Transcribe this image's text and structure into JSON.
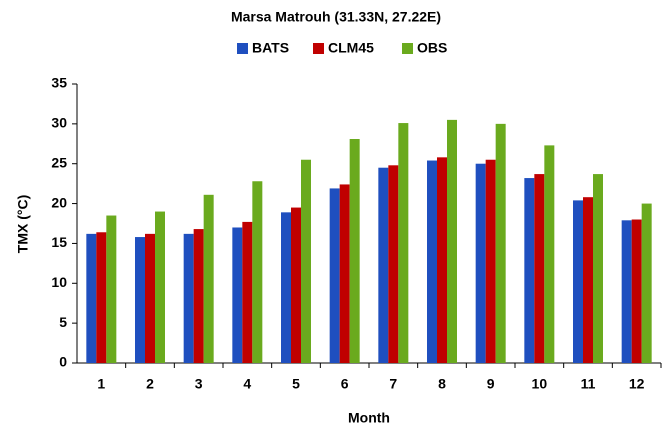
{
  "chart_data": {
    "type": "bar",
    "title": "Marsa Matrouh (31.33N, 27.22E)",
    "x_label": "Month",
    "y_label": "TMX (°C)",
    "categories": [
      "1",
      "2",
      "3",
      "4",
      "5",
      "6",
      "7",
      "8",
      "9",
      "10",
      "11",
      "12"
    ],
    "series": [
      {
        "name": "BATS",
        "color": "#1f4fbf",
        "values": [
          16.2,
          15.8,
          16.2,
          17.0,
          18.9,
          21.9,
          24.5,
          25.4,
          25.0,
          23.2,
          20.4,
          17.9
        ]
      },
      {
        "name": "CLM45",
        "color": "#c00000",
        "values": [
          16.4,
          16.2,
          16.8,
          17.7,
          19.5,
          22.4,
          24.8,
          25.8,
          25.5,
          23.7,
          20.8,
          18.0
        ]
      },
      {
        "name": "OBS",
        "color": "#6aaa1e",
        "values": [
          18.5,
          19.0,
          21.1,
          22.8,
          25.5,
          28.1,
          30.1,
          30.5,
          30.0,
          27.3,
          23.7,
          20.0
        ]
      }
    ],
    "ylim": [
      0,
      35
    ],
    "yticks": [
      0,
      5,
      10,
      15,
      20,
      25,
      30,
      35
    ],
    "grid": false
  }
}
